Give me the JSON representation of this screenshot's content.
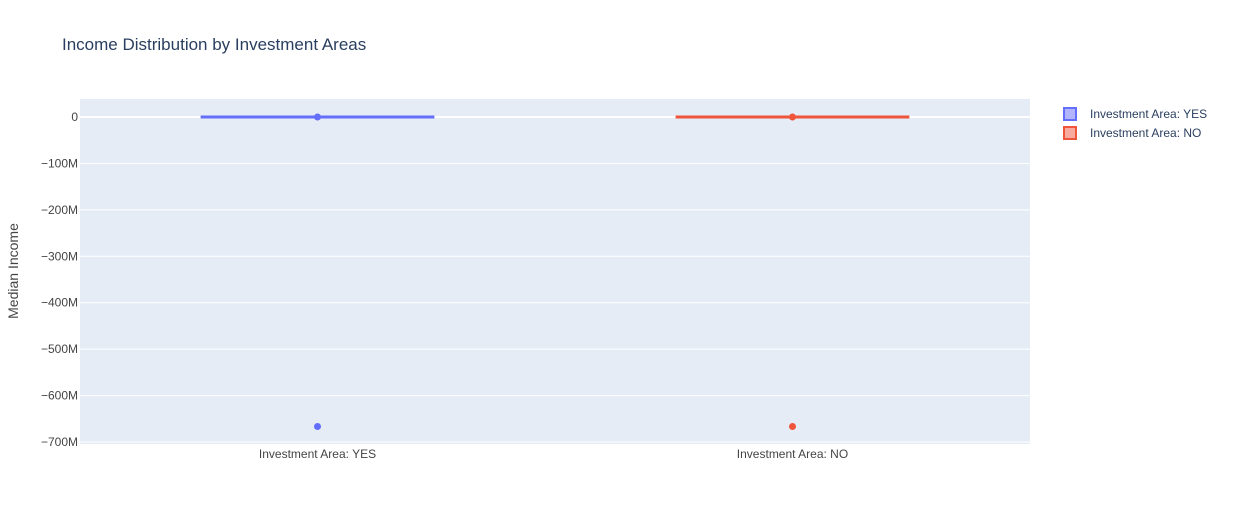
{
  "chart_data": {
    "type": "box",
    "title": "Income Distribution by Investment Areas",
    "xlabel": "",
    "ylabel": "Median Income",
    "categories": [
      "Investment Area: YES",
      "Investment Area: NO"
    ],
    "ylim": [
      -700000000,
      0
    ],
    "yticks": [
      0,
      -100000000,
      -200000000,
      -300000000,
      -400000000,
      -500000000,
      -600000000,
      -700000000
    ],
    "ytick_labels": [
      "0",
      "−100M",
      "−200M",
      "−300M",
      "−400M",
      "−500M",
      "−600M",
      "−700M"
    ],
    "grid": true,
    "legend_position": "top-right",
    "series": [
      {
        "name": "Investment Area: YES",
        "category": "Investment Area: YES",
        "color": "#636efa",
        "q1": 0,
        "median": 0,
        "q3": 0,
        "lower_fence": 0,
        "upper_fence": 0,
        "outliers": [
          -666666666
        ]
      },
      {
        "name": "Investment Area: NO",
        "category": "Investment Area: NO",
        "color": "#ef553b",
        "q1": 0,
        "median": 0,
        "q3": 0,
        "lower_fence": 0,
        "upper_fence": 0,
        "outliers": [
          -666666666
        ]
      }
    ],
    "colors": {
      "plot_bg": "#e5ecf6",
      "grid": "#ffffff",
      "text": "#2a3f5f",
      "axis_text": "#444444"
    }
  }
}
